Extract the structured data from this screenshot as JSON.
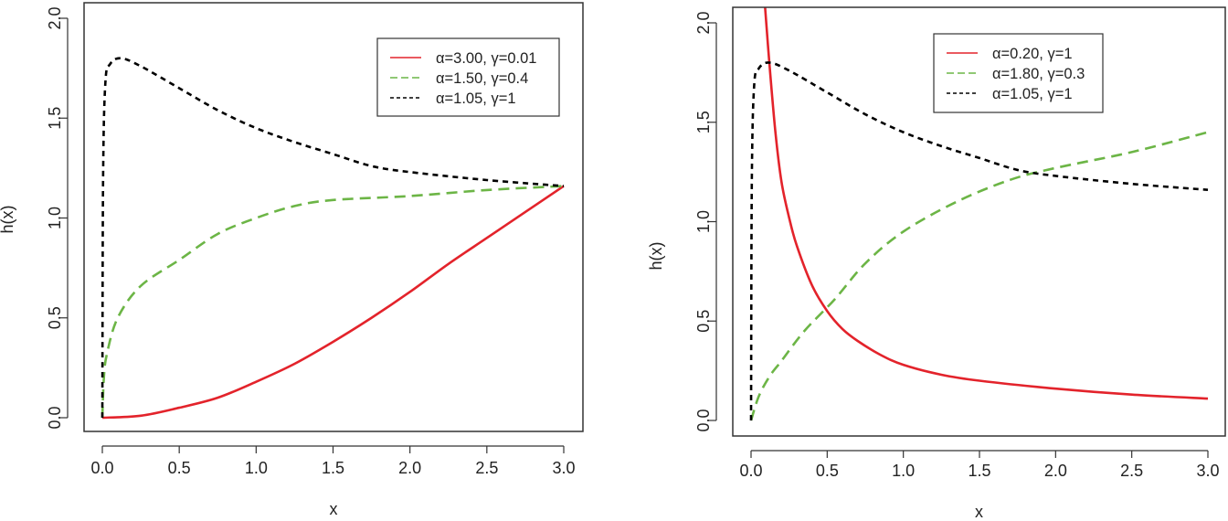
{
  "chart_data": [
    {
      "type": "line",
      "title": "",
      "xlabel": "x",
      "ylabel": "h(x)",
      "xlim": [
        0,
        3
      ],
      "ylim": [
        0,
        2.08
      ],
      "xticks": [
        "0.0",
        "0.5",
        "1.0",
        "1.5",
        "2.0",
        "2.5",
        "3.0"
      ],
      "yticks": [
        "0.0",
        "0.5",
        "1.0",
        "1.5",
        "2.0"
      ],
      "grid": false,
      "legend_position": "top-right",
      "series": [
        {
          "name": "α=3.00, γ=0.01",
          "color": "#e3232b",
          "style": "solid",
          "x": [
            0,
            0.25,
            0.5,
            0.75,
            1.0,
            1.25,
            1.5,
            1.75,
            2.0,
            2.25,
            2.5,
            2.75,
            3.0
          ],
          "y": [
            0,
            0.01,
            0.05,
            0.1,
            0.18,
            0.27,
            0.38,
            0.5,
            0.63,
            0.77,
            0.9,
            1.03,
            1.16
          ]
        },
        {
          "name": "α=1.50, γ=0.4",
          "color": "#6cb546",
          "style": "dashed",
          "x": [
            0,
            0.01,
            0.03,
            0.1,
            0.25,
            0.5,
            0.75,
            1.0,
            1.25,
            1.5,
            2.0,
            2.5,
            3.0
          ],
          "y": [
            0,
            0.2,
            0.32,
            0.5,
            0.66,
            0.79,
            0.92,
            1.0,
            1.06,
            1.09,
            1.11,
            1.14,
            1.16
          ]
        },
        {
          "name": "α=1.05, γ=1",
          "color": "#000000",
          "style": "dotted",
          "x": [
            0,
            0.005,
            0.02,
            0.05,
            0.12,
            0.25,
            0.5,
            0.75,
            1.0,
            1.25,
            1.5,
            1.75,
            2.0,
            2.5,
            3.0
          ],
          "y": [
            0,
            1.2,
            1.68,
            1.77,
            1.8,
            1.76,
            1.65,
            1.54,
            1.45,
            1.38,
            1.32,
            1.26,
            1.23,
            1.19,
            1.16
          ]
        }
      ]
    },
    {
      "type": "line",
      "title": "",
      "xlabel": "x",
      "ylabel": "h(x)",
      "xlim": [
        0,
        3
      ],
      "ylim": [
        0,
        2.08
      ],
      "xticks": [
        "0.0",
        "0.5",
        "1.0",
        "1.5",
        "2.0",
        "2.5",
        "3.0"
      ],
      "yticks": [
        "0.0",
        "0.5",
        "1.0",
        "1.5",
        "2.0"
      ],
      "grid": false,
      "legend_position": "top-right",
      "series": [
        {
          "name": "α=0.20, γ=1",
          "color": "#e3232b",
          "style": "solid",
          "x": [
            0.09,
            0.12,
            0.16,
            0.2,
            0.25,
            0.3,
            0.4,
            0.5,
            0.6,
            0.7,
            0.85,
            1.0,
            1.25,
            1.5,
            2.0,
            2.5,
            3.0
          ],
          "y": [
            2.1,
            1.8,
            1.45,
            1.2,
            1.02,
            0.88,
            0.68,
            0.55,
            0.46,
            0.4,
            0.33,
            0.28,
            0.23,
            0.2,
            0.16,
            0.13,
            0.11
          ]
        },
        {
          "name": "α=1.80, γ=0.3",
          "color": "#6cb546",
          "style": "dashed",
          "x": [
            0,
            0.05,
            0.12,
            0.2,
            0.35,
            0.55,
            0.75,
            1.0,
            1.35,
            1.7,
            2.0,
            2.5,
            3.0
          ],
          "y": [
            0,
            0.12,
            0.22,
            0.3,
            0.45,
            0.61,
            0.79,
            0.95,
            1.1,
            1.21,
            1.27,
            1.35,
            1.45
          ]
        },
        {
          "name": "α=1.05, γ=1",
          "color": "#000000",
          "style": "dotted",
          "x": [
            0,
            0.005,
            0.02,
            0.05,
            0.12,
            0.25,
            0.5,
            0.75,
            1.0,
            1.25,
            1.5,
            1.75,
            2.0,
            2.5,
            3.0
          ],
          "y": [
            0,
            1.2,
            1.68,
            1.77,
            1.8,
            1.76,
            1.65,
            1.54,
            1.45,
            1.38,
            1.32,
            1.26,
            1.23,
            1.19,
            1.16
          ]
        }
      ]
    }
  ]
}
